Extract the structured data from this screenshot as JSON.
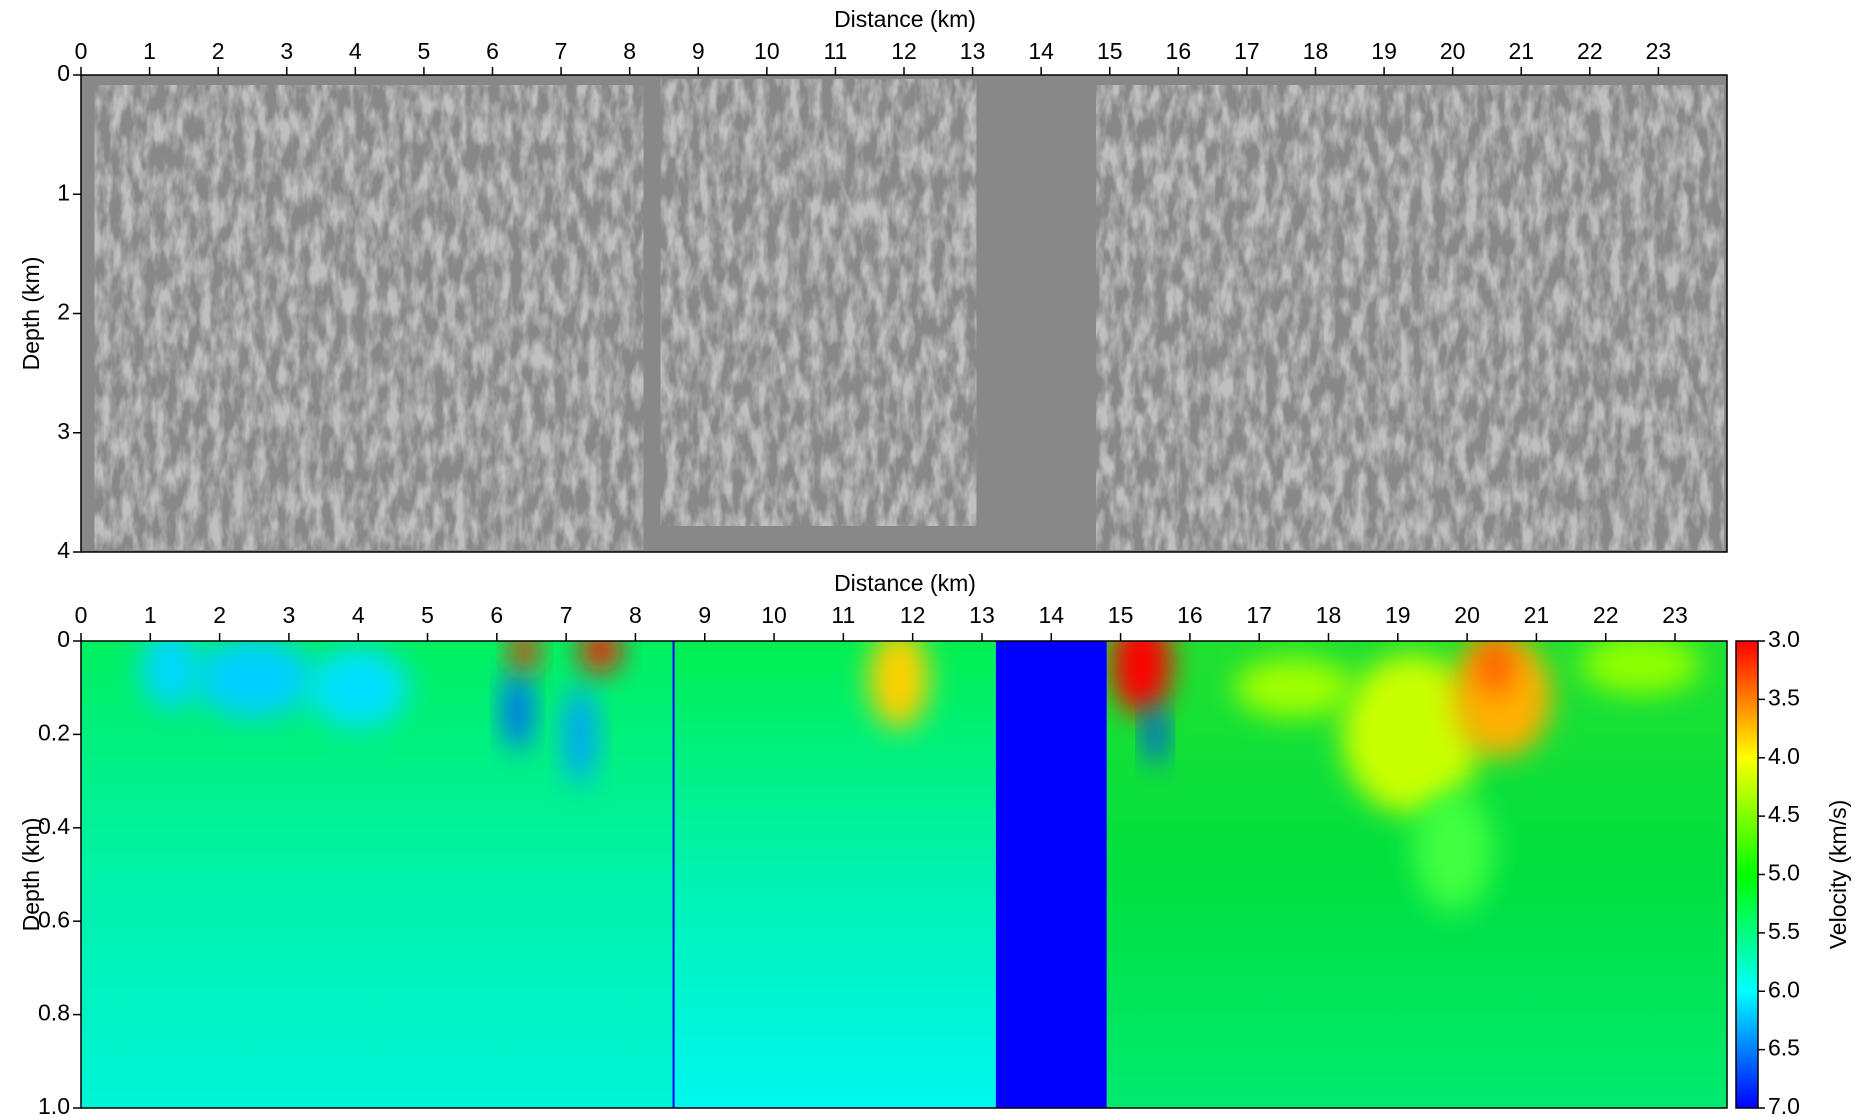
{
  "chart_data": [
    {
      "type": "seismic-image",
      "title": "Distance (km)",
      "y_label": "Depth (km)",
      "xlim": [
        0,
        24
      ],
      "xticks": [
        0,
        1,
        2,
        3,
        4,
        5,
        6,
        7,
        8,
        9,
        10,
        11,
        12,
        13,
        14,
        15,
        16,
        17,
        18,
        19,
        20,
        21,
        22,
        23
      ],
      "ylim": [
        0,
        4
      ],
      "yticks": [
        0,
        1,
        2,
        3,
        4
      ]
    },
    {
      "type": "heatmap",
      "title": "Distance (km)",
      "y_label": "Depth (km)",
      "xlim": [
        0,
        23.75
      ],
      "xticks": [
        0,
        1,
        2,
        3,
        4,
        5,
        6,
        7,
        8,
        9,
        10,
        11,
        12,
        13,
        14,
        15,
        16,
        17,
        18,
        19,
        20,
        21,
        22,
        23
      ],
      "ylim": [
        0,
        1
      ],
      "yticks": [
        0,
        0.2,
        0.4,
        0.6,
        0.8,
        {
          "value": 1,
          "label": "1.0"
        }
      ],
      "colorbar": {
        "label": "Velocity (km/s)",
        "lim": [
          3,
          7
        ],
        "colors": [
          "#ff0000",
          "#ffff00",
          "#00ff00",
          "#00ffff",
          "#0000ff"
        ],
        "ticks": [
          {
            "value": 3,
            "label": "3.0"
          },
          {
            "value": 3.5,
            "label": "3.5"
          },
          {
            "value": 4,
            "label": "4.0"
          },
          {
            "value": 4.5,
            "label": "4.5"
          },
          {
            "value": 5,
            "label": "5.0"
          },
          {
            "value": 5.5,
            "label": "5.5"
          },
          {
            "value": 6,
            "label": "6.0"
          },
          {
            "value": 6.5,
            "label": "6.5"
          },
          {
            "value": 7,
            "label": "7.0"
          }
        ]
      }
    }
  ]
}
